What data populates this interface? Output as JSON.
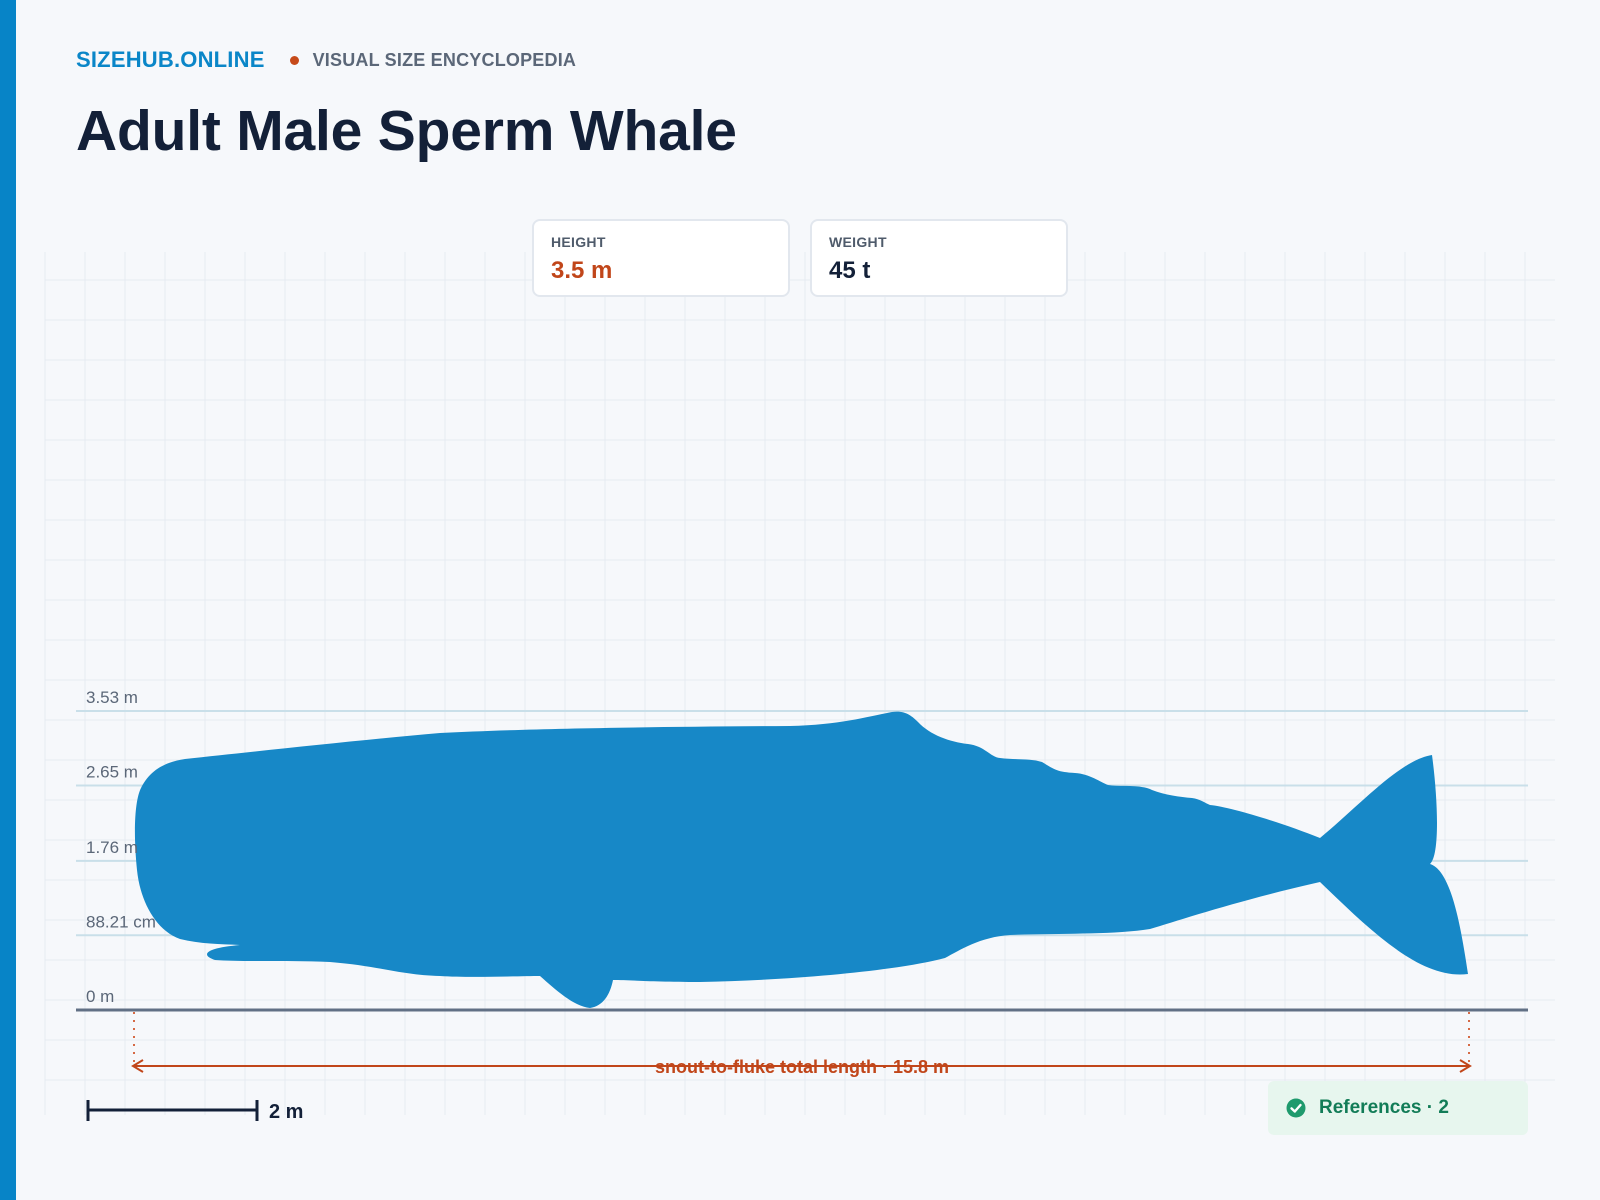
{
  "header": {
    "brand": "SIZEHUB.ONLINE",
    "tagline": "VISUAL SIZE ENCYCLOPEDIA",
    "title": "Adult Male Sperm Whale"
  },
  "stats": {
    "height": {
      "label": "HEIGHT",
      "value": "3.5 m"
    },
    "weight": {
      "label": "WEIGHT",
      "value": "45 t"
    }
  },
  "chart_data": {
    "type": "size-comparison",
    "subject": "Adult Male Sperm Whale",
    "height_m": 3.53,
    "length_m": 15.8,
    "height_ticks": [
      {
        "value": 3.53,
        "label": "3.53 m"
      },
      {
        "value": 2.65,
        "label": "2.65 m"
      },
      {
        "value": 1.76,
        "label": "1.76 m"
      },
      {
        "value": 0.8821,
        "label": "88.21 cm"
      },
      {
        "value": 0,
        "label": "0 m"
      }
    ],
    "length_annotation": "snout-to-fluke total length · 15.8 m",
    "scale_bar": {
      "value_m": 2,
      "label": "2 m"
    },
    "grid": true
  },
  "references": {
    "label": "References · 2"
  },
  "colors": {
    "accent": "#0784c7",
    "silhouette": "#1788c7",
    "annotation": "#c1461a",
    "reference_green": "#127c57"
  }
}
